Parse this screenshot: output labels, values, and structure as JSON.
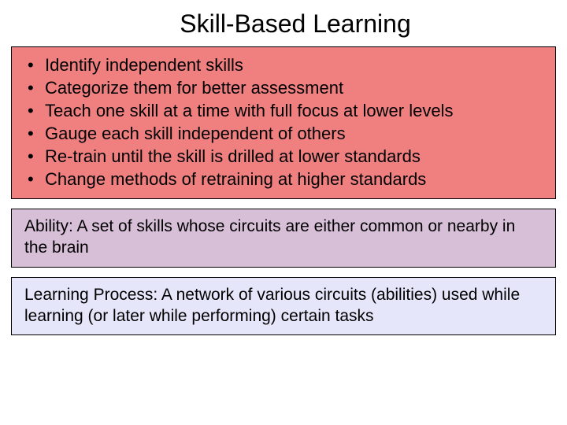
{
  "slide": {
    "title": "Skill-Based Learning",
    "bullets": [
      "Identify independent skills",
      "Categorize them for better assessment",
      "Teach one skill at a time with full focus at lower levels",
      "Gauge each skill independent of others",
      "Re-train until the skill is drilled at lower standards",
      "Change methods of retraining at higher standards"
    ],
    "ability_def": "Ability: A set of skills whose circuits are either common or nearby in the brain",
    "learning_def": "Learning Process: A network of various circuits (abilities) used while learning (or later while performing) certain tasks",
    "colors": {
      "box_pink": "#f08080",
      "box_purple": "#d8bfd8",
      "box_lavender": "#e6e6fa",
      "border": "#000000",
      "text": "#000000",
      "background": "#ffffff"
    },
    "fonts": {
      "title_size": 32,
      "bullet_size": 22,
      "def_size": 21
    }
  }
}
